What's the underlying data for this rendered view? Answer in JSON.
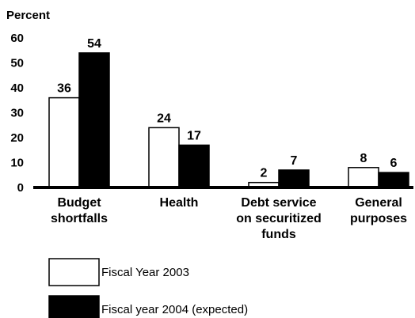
{
  "chart_data": {
    "type": "bar",
    "ylabel": "Percent",
    "ylim": [
      0,
      60
    ],
    "yticks": [
      0,
      10,
      20,
      30,
      40,
      50,
      60
    ],
    "grid": false,
    "legend_position": "bottom-left",
    "categories": [
      [
        "Budget",
        "shortfalls"
      ],
      [
        "Health"
      ],
      [
        "Debt service",
        "on securitized",
        "funds"
      ],
      [
        "General",
        "purposes"
      ]
    ],
    "series": [
      {
        "name": "Fiscal Year 2003",
        "values": [
          36,
          24,
          2,
          8
        ],
        "color": "#ffffff"
      },
      {
        "name": "Fiscal year 2004 (expected)",
        "values": [
          54,
          17,
          7,
          6
        ],
        "color": "#000000"
      }
    ]
  }
}
